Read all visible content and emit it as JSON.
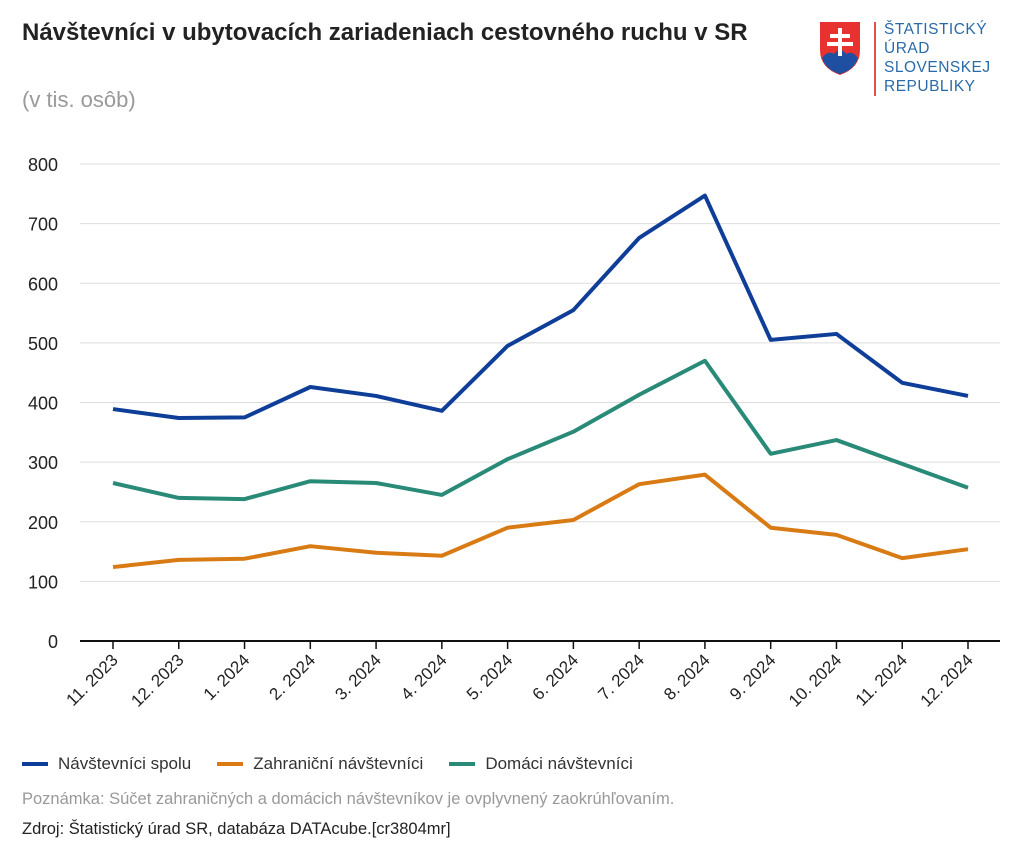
{
  "header": {
    "title": "Návštevníci v ubytovacích zariadeniach cestovného ruchu v SR",
    "subtitle": "(v tis. osôb)"
  },
  "logo": {
    "lines": [
      "ŠTATISTICKÝ",
      "ÚRAD",
      "SLOVENSKEJ",
      "REPUBLIKY"
    ]
  },
  "chart_data": {
    "type": "line",
    "title": "Návštevníci v ubytovacích zariadeniach cestovného ruchu v SR",
    "ylabel": "(v tis. osôb)",
    "ylim": [
      0,
      800
    ],
    "yticks": [
      0,
      100,
      200,
      300,
      400,
      500,
      600,
      700,
      800
    ],
    "categories": [
      "11. 2023",
      "12. 2023",
      "1. 2024",
      "2. 2024",
      "3. 2024",
      "4. 2024",
      "5. 2024",
      "6. 2024",
      "7. 2024",
      "8. 2024",
      "9. 2024",
      "10. 2024",
      "11. 2024",
      "12. 2024"
    ],
    "grid": true,
    "legend_position": "bottom",
    "series": [
      {
        "name": "Návštevníci spolu",
        "color": "#0f3e99",
        "values": [
          389,
          374,
          375,
          426,
          411,
          386,
          495,
          555,
          676,
          747,
          505,
          515,
          433,
          411
        ]
      },
      {
        "name": "Zahraniční návštevníci",
        "color": "#d97b14",
        "values": [
          124,
          136,
          138,
          159,
          148,
          143,
          190,
          203,
          263,
          279,
          190,
          178,
          139,
          154
        ]
      },
      {
        "name": "Domáci návštevníci",
        "color": "#2a8a78",
        "values": [
          265,
          240,
          238,
          268,
          265,
          245,
          305,
          351,
          413,
          470,
          314,
          337,
          297,
          257
        ]
      }
    ]
  },
  "footer": {
    "note": "Poznámka: Súčet zahraničných a domácich návštevníkov je ovplyvnený zaokrúhľovaním.",
    "source": "Zdroj: Štatistický úrad SR, databáza DATAcube.[cr3804mr]"
  }
}
